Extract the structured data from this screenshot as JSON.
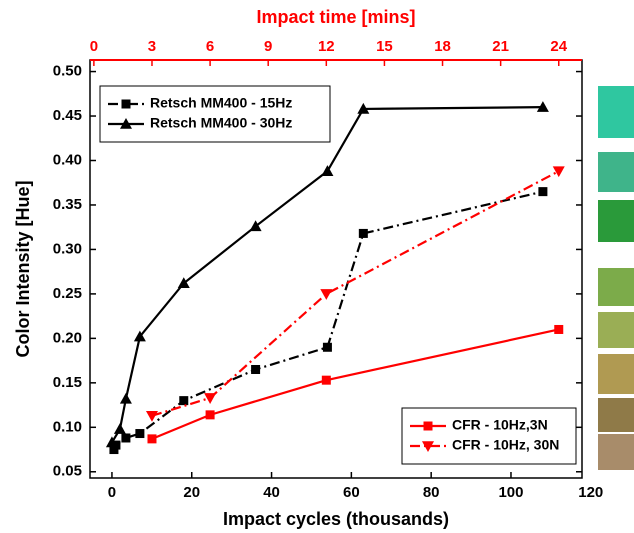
{
  "chart_data": {
    "type": "line",
    "x2label": "Impact time [mins]",
    "xlabel": "Impact cycles (thousands)",
    "ylabel": "Color Intensity [Hue]",
    "xlim": [
      -5.5,
      117.8
    ],
    "xticks": [
      0,
      20,
      40,
      60,
      80,
      100,
      120
    ],
    "x2lim": [
      -0.2,
      25.2
    ],
    "x2ticks": [
      0,
      3,
      6,
      9,
      12,
      15,
      18,
      21,
      24
    ],
    "x2color": "#ff0000",
    "ylim": [
      0.043,
      0.513
    ],
    "yticks": [
      0.05,
      {
        "value": 0.1,
        "label": "0.10"
      },
      0.15,
      {
        "value": 0.2,
        "label": "0.20"
      },
      0.25,
      {
        "value": 0.3,
        "label": "0.30"
      },
      0.35,
      {
        "value": 0.4,
        "label": "0.40"
      },
      0.45,
      {
        "value": 0.5,
        "label": "0.50"
      }
    ],
    "legends": [
      {
        "corner": "upper left",
        "series": [
          0,
          1
        ]
      },
      {
        "corner": "lower right",
        "series": [
          2,
          3
        ]
      }
    ],
    "series": [
      {
        "name": "Retsch MM400 - 15Hz",
        "color": "#000000",
        "marker": "square",
        "dash": "dashdot",
        "x": [
          0.5,
          1,
          3.5,
          7,
          18,
          36,
          54,
          63,
          108
        ],
        "values": [
          0.075,
          0.08,
          0.088,
          0.093,
          0.13,
          0.165,
          0.19,
          0.318,
          0.365
        ]
      },
      {
        "name": "Retsch MM400 - 30Hz",
        "color": "#000000",
        "marker": "triangle-up",
        "dash": "solid",
        "x": [
          0,
          2,
          3.5,
          7,
          18,
          36,
          54,
          63,
          108
        ],
        "values": [
          0.083,
          0.098,
          0.132,
          0.202,
          0.262,
          0.326,
          0.388,
          0.458,
          0.46
        ]
      },
      {
        "name": "CFR - 10Hz,3N",
        "color": "#ff0000",
        "marker": "square",
        "dash": "solid",
        "axis": "x2",
        "x": [
          3,
          6,
          12,
          24
        ],
        "values": [
          0.087,
          0.114,
          0.153,
          0.21
        ]
      },
      {
        "name": "CFR - 10Hz, 30N",
        "color": "#ff0000",
        "marker": "triangle-down",
        "dash": "dashdot",
        "axis": "x2",
        "x": [
          3,
          6,
          12,
          24
        ],
        "values": [
          0.113,
          0.133,
          0.25,
          0.388
        ]
      }
    ]
  }
}
